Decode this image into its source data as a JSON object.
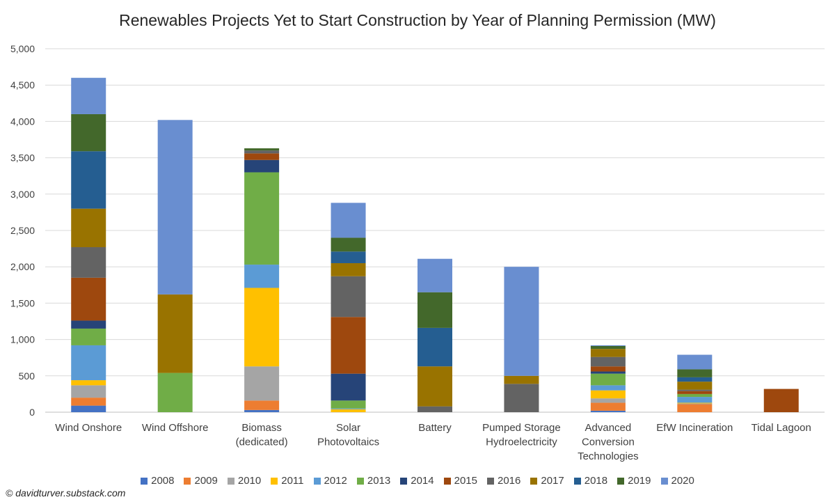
{
  "chart_data": {
    "type": "bar",
    "stacked": true,
    "title": "Renewables Projects Yet to Start Construction by Year of Planning Permission (MW)",
    "categories": [
      [
        "Wind Onshore"
      ],
      [
        "Wind Offshore"
      ],
      [
        "Biomass",
        "(dedicated)"
      ],
      [
        "Solar",
        "Photovoltaics"
      ],
      [
        "Battery"
      ],
      [
        "Pumped Storage",
        "Hydroelectricity"
      ],
      [
        "Advanced",
        "Conversion",
        "Technologies"
      ],
      [
        "EfW Incineration"
      ],
      [
        "Tidal Lagoon"
      ]
    ],
    "ylim": [
      0,
      5000
    ],
    "yticks": [
      0,
      500,
      1000,
      1500,
      2000,
      2500,
      3000,
      3500,
      4000,
      4500,
      5000
    ],
    "ytick_labels": [
      "0",
      "500",
      "1,000",
      "1,500",
      "2,000",
      "2,500",
      "3,000",
      "3,500",
      "4,000",
      "4,500",
      "5,000"
    ],
    "grid": true,
    "legend_position": "bottom",
    "series": [
      {
        "name": "2008",
        "color": "#4472C4",
        "values": [
          90,
          0,
          30,
          0,
          0,
          0,
          20,
          0,
          0
        ]
      },
      {
        "name": "2009",
        "color": "#ED7D31",
        "values": [
          110,
          0,
          130,
          0,
          0,
          0,
          110,
          110,
          0
        ]
      },
      {
        "name": "2010",
        "color": "#A5A5A5",
        "values": [
          170,
          0,
          470,
          0,
          0,
          0,
          60,
          10,
          0
        ]
      },
      {
        "name": "2011",
        "color": "#FFC000",
        "values": [
          70,
          0,
          1080,
          40,
          0,
          0,
          110,
          10,
          0
        ]
      },
      {
        "name": "2012",
        "color": "#5B9BD5",
        "values": [
          480,
          0,
          320,
          10,
          0,
          0,
          70,
          80,
          0
        ]
      },
      {
        "name": "2013",
        "color": "#70AD47",
        "values": [
          230,
          540,
          1270,
          110,
          0,
          0,
          160,
          40,
          0
        ]
      },
      {
        "name": "2014",
        "color": "#264478",
        "values": [
          110,
          0,
          170,
          370,
          0,
          0,
          30,
          0,
          0
        ]
      },
      {
        "name": "2015",
        "color": "#9E480E",
        "values": [
          590,
          0,
          90,
          780,
          0,
          0,
          70,
          40,
          320
        ]
      },
      {
        "name": "2016",
        "color": "#636363",
        "values": [
          420,
          0,
          40,
          560,
          80,
          390,
          130,
          20,
          0
        ]
      },
      {
        "name": "2017",
        "color": "#997300",
        "values": [
          530,
          1080,
          0,
          180,
          550,
          110,
          110,
          110,
          0
        ]
      },
      {
        "name": "2018",
        "color": "#255E91",
        "values": [
          790,
          0,
          0,
          160,
          530,
          0,
          0,
          60,
          0
        ]
      },
      {
        "name": "2019",
        "color": "#43682B",
        "values": [
          510,
          0,
          30,
          190,
          490,
          0,
          40,
          110,
          0
        ]
      },
      {
        "name": "2020",
        "color": "#698ED0",
        "values": [
          500,
          2400,
          0,
          480,
          460,
          1500,
          10,
          200,
          0
        ]
      }
    ]
  },
  "copyright": "© davidturver.substack.com"
}
